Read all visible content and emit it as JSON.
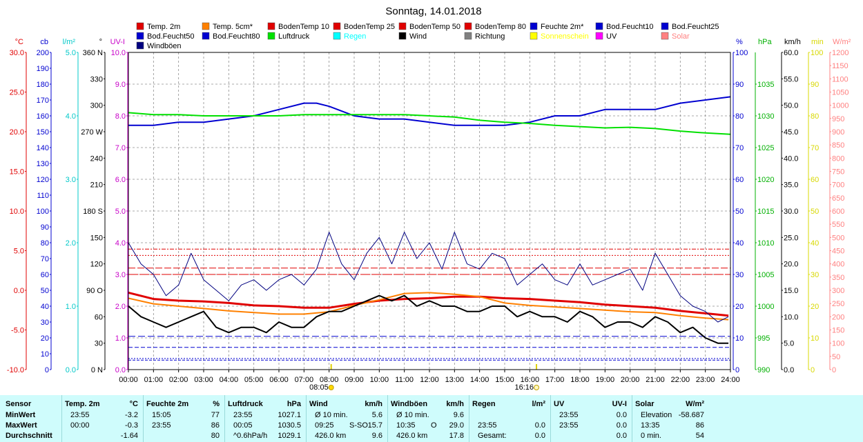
{
  "chart_data": {
    "type": "line",
    "title": "Sonntag, 14.01.2018",
    "legend": [
      {
        "name": "Temp. 2m",
        "color": "#e00000"
      },
      {
        "name": "Temp. 5cm*",
        "color": "#ff8000"
      },
      {
        "name": "BodenTemp 10",
        "color": "#e00000"
      },
      {
        "name": "BodenTemp 25",
        "color": "#e00000"
      },
      {
        "name": "BodenTemp 50",
        "color": "#e00000"
      },
      {
        "name": "BodenTemp 80",
        "color": "#e00000"
      },
      {
        "name": "Feuchte 2m*",
        "color": "#0000d0"
      },
      {
        "name": "Bod.Feucht10",
        "color": "#0000d0"
      },
      {
        "name": "Bod.Feucht25",
        "color": "#0000d0"
      },
      {
        "name": "Bod.Feucht50",
        "color": "#0000d0"
      },
      {
        "name": "Bod.Feucht80",
        "color": "#0000d0"
      },
      {
        "name": "Luftdruck",
        "color": "#00e000"
      },
      {
        "name": "Regen",
        "color": "#00ffff"
      },
      {
        "name": "Wind",
        "color": "#000000"
      },
      {
        "name": "Richtung",
        "color": "#808080"
      },
      {
        "name": "Sonnenschein",
        "color": "#ffff00"
      },
      {
        "name": "UV",
        "color": "#ff00ff"
      },
      {
        "name": "Solar",
        "color": "#ff8080"
      },
      {
        "name": "Windböen",
        "color": "#000080"
      }
    ],
    "x_ticks": [
      "00:00",
      "01:00",
      "02:00",
      "03:00",
      "04:00",
      "05:00",
      "06:00",
      "07:00",
      "08:00",
      "09:00",
      "10:00",
      "11:00",
      "12:00",
      "13:00",
      "14:00",
      "15:00",
      "16:00",
      "17:00",
      "18:00",
      "19:00",
      "20:00",
      "21:00",
      "22:00",
      "23:00",
      "24:00"
    ],
    "sunrise": "08:05",
    "sunset": "16:16",
    "axes_left": [
      {
        "unit": "°C",
        "color": "#e00000",
        "min": -10,
        "max": 30,
        "ticks": [
          "30.0",
          "25.0",
          "20.0",
          "15.0",
          "10.0",
          "5.0",
          "0.0",
          "-5.0",
          "-10.0"
        ]
      },
      {
        "unit": "cb",
        "color": "#0000d0",
        "min": 0,
        "max": 200,
        "ticks": [
          "200",
          "190",
          "180",
          "170",
          "160",
          "150",
          "140",
          "130",
          "120",
          "110",
          "100",
          "90",
          "80",
          "70",
          "60",
          "50",
          "40",
          "30",
          "20",
          "10",
          "0"
        ]
      },
      {
        "unit": "l/m²",
        "color": "#00c8c8",
        "min": 0,
        "max": 5,
        "ticks": [
          "5.0",
          "4.0",
          "3.0",
          "2.0",
          "1.0",
          "0.0"
        ]
      },
      {
        "unit": "°",
        "color": "#000000",
        "min": 0,
        "max": 360,
        "ticks": [
          "360 N",
          "330",
          "300",
          "270 W",
          "240",
          "210",
          "180 S",
          "150",
          "120",
          "90 O",
          "60",
          "30",
          "0 N"
        ]
      },
      {
        "unit": "UV-I",
        "color": "#c800c8",
        "min": 0,
        "max": 10,
        "ticks": [
          "10.0",
          "9.0",
          "8.0",
          "7.0",
          "6.0",
          "5.0",
          "4.0",
          "3.0",
          "2.0",
          "1.0",
          "0.0"
        ]
      }
    ],
    "axes_right": [
      {
        "unit": "%",
        "color": "#0000d0",
        "min": 0,
        "max": 100,
        "ticks": [
          "100",
          "90",
          "80",
          "70",
          "60",
          "50",
          "40",
          "30",
          "20",
          "10",
          "0"
        ]
      },
      {
        "unit": "hPa",
        "color": "#00b000",
        "min": 990,
        "max": 1040,
        "ticks": [
          "1035",
          "1030",
          "1025",
          "1020",
          "1015",
          "1010",
          "1005",
          "1000",
          "995",
          "990"
        ]
      },
      {
        "unit": "km/h",
        "color": "#000000",
        "min": 0,
        "max": 60,
        "ticks": [
          "60.0",
          "55.0",
          "50.0",
          "45.0",
          "40.0",
          "35.0",
          "30.0",
          "25.0",
          "20.0",
          "15.0",
          "10.0",
          "5.0",
          "0.0"
        ]
      },
      {
        "unit": "min",
        "color": "#d8d800",
        "min": 0,
        "max": 100,
        "ticks": [
          "100",
          "90",
          "80",
          "70",
          "60",
          "50",
          "40",
          "30",
          "20",
          "10",
          "0"
        ]
      },
      {
        "unit": "W/m²",
        "color": "#ff8080",
        "min": 0,
        "max": 1200,
        "ticks": [
          "1200",
          "1150",
          "1100",
          "1050",
          "1000",
          "950",
          "900",
          "850",
          "800",
          "750",
          "700",
          "650",
          "600",
          "550",
          "500",
          "450",
          "400",
          "350",
          "300",
          "250",
          "200",
          "150",
          "100",
          "50",
          "0"
        ]
      }
    ],
    "series": [
      {
        "name": "Feuchte 2m*",
        "axis": "%",
        "color": "#0000d0",
        "x": [
          0,
          1,
          2,
          3,
          4,
          5,
          6,
          7,
          7.5,
          8,
          9,
          10,
          11,
          12,
          13,
          14,
          15,
          16,
          17,
          18,
          19,
          20,
          21,
          22,
          23,
          24
        ],
        "y": [
          77,
          77,
          78,
          78,
          79,
          80,
          82,
          84,
          84,
          83,
          80,
          79,
          79,
          78,
          77,
          77,
          77,
          78,
          80,
          80,
          82,
          82,
          82,
          84,
          85,
          86
        ]
      },
      {
        "name": "Luftdruck",
        "axis": "hPa",
        "color": "#00e000",
        "x": [
          0,
          1,
          2,
          3,
          4,
          5,
          6,
          7,
          8,
          9,
          10,
          11,
          12,
          13,
          14,
          15,
          16,
          17,
          18,
          19,
          20,
          21,
          22,
          23,
          24
        ],
        "y": [
          1030.5,
          1030.2,
          1030.2,
          1030.0,
          1030.0,
          1030.0,
          1030.0,
          1030.2,
          1030.2,
          1030.2,
          1030.2,
          1030.2,
          1030.0,
          1029.8,
          1029.3,
          1029.0,
          1028.8,
          1028.5,
          1028.3,
          1028.1,
          1028.2,
          1028.0,
          1027.6,
          1027.3,
          1027.1
        ]
      },
      {
        "name": "Temp. 2m",
        "axis": "°C",
        "color": "#e00000",
        "x": [
          0,
          1,
          2,
          3,
          4,
          5,
          6,
          7,
          8,
          9,
          10,
          11,
          12,
          13,
          14,
          15,
          16,
          17,
          18,
          19,
          20,
          21,
          22,
          23,
          23.92
        ],
        "y": [
          -0.3,
          -1.1,
          -1.3,
          -1.4,
          -1.6,
          -1.9,
          -2.0,
          -2.2,
          -2.2,
          -1.7,
          -1.3,
          -1.1,
          -1.0,
          -0.8,
          -0.8,
          -1.0,
          -1.1,
          -1.3,
          -1.5,
          -1.8,
          -2.0,
          -2.2,
          -2.6,
          -2.9,
          -3.2
        ]
      },
      {
        "name": "Temp. 5cm*",
        "axis": "°C",
        "color": "#ff8000",
        "x": [
          0,
          1,
          2,
          3,
          4,
          5,
          6,
          7,
          8,
          9,
          10,
          11,
          12,
          13,
          14,
          15,
          16,
          17,
          18,
          19,
          20,
          21,
          22,
          23,
          23.92
        ],
        "y": [
          -1.0,
          -1.7,
          -2.0,
          -2.3,
          -2.6,
          -2.8,
          -3.0,
          -3.0,
          -2.7,
          -1.9,
          -1.2,
          -0.4,
          -0.3,
          -0.5,
          -0.8,
          -1.6,
          -1.9,
          -2.1,
          -2.3,
          -2.5,
          -2.7,
          -2.8,
          -3.2,
          -3.5,
          -3.7
        ]
      },
      {
        "name": "Wind",
        "axis": "km/h",
        "color": "#000000",
        "x": [
          0,
          0.5,
          1,
          1.5,
          2,
          2.5,
          3,
          3.5,
          4,
          4.5,
          5,
          5.5,
          6,
          6.5,
          7,
          7.5,
          8,
          8.5,
          9,
          9.5,
          10,
          10.5,
          11,
          11.5,
          12,
          12.5,
          13,
          13.5,
          14,
          14.5,
          15,
          15.5,
          16,
          16.5,
          17,
          17.5,
          18,
          18.5,
          19,
          19.5,
          20,
          20.5,
          21,
          21.5,
          22,
          22.5,
          23,
          23.5,
          23.92
        ],
        "y": [
          12,
          10,
          9,
          8,
          9,
          10,
          11,
          8,
          7,
          8,
          8,
          7,
          9,
          8,
          8,
          10,
          11,
          11,
          12,
          13,
          14,
          13,
          14,
          12,
          13,
          12,
          12,
          11,
          11,
          12,
          12,
          10,
          11,
          10,
          10,
          9,
          11,
          10,
          8,
          9,
          9,
          8,
          10,
          9,
          7,
          8,
          6,
          5,
          5
        ]
      },
      {
        "name": "Windböen",
        "axis": "km/h",
        "color": "#000080",
        "x": [
          0,
          0.5,
          1,
          1.5,
          2,
          2.5,
          3,
          3.5,
          4,
          4.5,
          5,
          5.5,
          6,
          6.5,
          7,
          7.5,
          8,
          8.5,
          9,
          9.5,
          10,
          10.5,
          11,
          11.5,
          12,
          12.5,
          13,
          13.5,
          14,
          14.5,
          15,
          15.5,
          16,
          16.5,
          17,
          17.5,
          18,
          18.5,
          19,
          19.5,
          20,
          20.5,
          21,
          21.5,
          22,
          22.5,
          23,
          23.5,
          23.92
        ],
        "y": [
          24,
          20,
          18,
          14,
          16,
          22,
          17,
          15,
          13,
          16,
          17,
          15,
          17,
          18,
          16,
          19,
          26,
          20,
          17,
          22,
          25,
          20,
          26,
          21,
          24,
          19,
          26,
          20,
          19,
          22,
          21,
          16,
          18,
          20,
          17,
          16,
          20,
          16,
          17,
          18,
          19,
          15,
          22,
          18,
          14,
          12,
          11,
          9,
          10
        ]
      }
    ]
  },
  "stats": {
    "cols": [
      {
        "title": "Sensor",
        "unit": "",
        "rows": [
          {
            "label": "MinWert"
          },
          {
            "label": "MaxWert"
          },
          {
            "label": "Durchschnitt"
          }
        ]
      },
      {
        "title": "Temp. 2m",
        "unit": "°C",
        "rows": [
          {
            "time": "23:55",
            "value": "-3.2"
          },
          {
            "time": "00:00",
            "value": "-0.3"
          },
          {
            "time": "",
            "value": "-1.64"
          }
        ]
      },
      {
        "title": "Feuchte 2m",
        "unit": "%",
        "rows": [
          {
            "time": "15:05",
            "value": "77"
          },
          {
            "time": "23:55",
            "value": "86"
          },
          {
            "time": "",
            "value": "80"
          }
        ]
      },
      {
        "title": "Luftdruck",
        "unit": "hPa",
        "rows": [
          {
            "time": "23:55",
            "value": "1027.1"
          },
          {
            "time": "00:05",
            "value": "1030.5"
          },
          {
            "time": "^0.6hPa/h",
            "value": "1029.1"
          }
        ]
      },
      {
        "title": "Wind",
        "unit": "km/h",
        "rows": [
          {
            "time": "Ø 10 min.",
            "value": "5.6"
          },
          {
            "time": "09:25",
            "extra": "S-SO",
            "value": "15.7"
          },
          {
            "time": "426.0 km",
            "value": "9.6"
          }
        ]
      },
      {
        "title": "Windböen",
        "unit": "km/h",
        "rows": [
          {
            "time": "Ø 10 min.",
            "value": "9.6"
          },
          {
            "time": "10:35",
            "extra": "O",
            "value": "29.0"
          },
          {
            "time": "426.0 km",
            "value": "17.8"
          }
        ]
      },
      {
        "title": "Regen",
        "unit": "l/m²",
        "rows": [
          {
            "time": "",
            "value": ""
          },
          {
            "time": "23:55",
            "value": "0.0"
          },
          {
            "time": "Gesamt:",
            "value": "0.0"
          }
        ]
      },
      {
        "title": "UV",
        "unit": "UV-I",
        "rows": [
          {
            "time": "23:55",
            "value": "0.0"
          },
          {
            "time": "23:55",
            "value": "0.0"
          },
          {
            "time": "",
            "value": "0.0"
          }
        ]
      },
      {
        "title": "Solar",
        "unit": "W/m²",
        "rows": [
          {
            "time": "Elevation",
            "value": "-58.687"
          },
          {
            "time": "13:35",
            "value": "86"
          },
          {
            "time": "0 min.",
            "value": "54"
          }
        ]
      }
    ]
  }
}
